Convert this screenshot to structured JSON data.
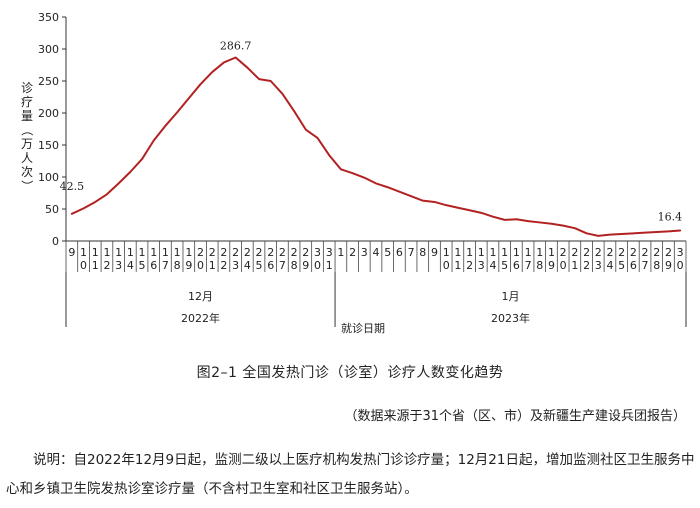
{
  "chart_data": {
    "type": "line",
    "ylabel": "诊疗量（万人次）",
    "xlabel": "就诊日期",
    "ylim": [
      0,
      350
    ],
    "yticks": [
      0,
      50,
      100,
      150,
      200,
      250,
      300,
      350
    ],
    "x": [
      "2022-12-09",
      "2022-12-10",
      "2022-12-11",
      "2022-12-12",
      "2022-12-13",
      "2022-12-14",
      "2022-12-15",
      "2022-12-16",
      "2022-12-17",
      "2022-12-18",
      "2022-12-19",
      "2022-12-20",
      "2022-12-21",
      "2022-12-22",
      "2022-12-23",
      "2022-12-24",
      "2022-12-25",
      "2022-12-26",
      "2022-12-27",
      "2022-12-28",
      "2022-12-29",
      "2022-12-30",
      "2022-12-31",
      "2023-01-01",
      "2023-01-02",
      "2023-01-03",
      "2023-01-04",
      "2023-01-05",
      "2023-01-06",
      "2023-01-07",
      "2023-01-08",
      "2023-01-09",
      "2023-01-10",
      "2023-01-11",
      "2023-01-12",
      "2023-01-13",
      "2023-01-14",
      "2023-01-15",
      "2023-01-16",
      "2023-01-17",
      "2023-01-18",
      "2023-01-19",
      "2023-01-20",
      "2023-01-21",
      "2023-01-22",
      "2023-01-23",
      "2023-01-24",
      "2023-01-25",
      "2023-01-26",
      "2023-01-27",
      "2023-01-28",
      "2023-01-29",
      "2023-01-30"
    ],
    "tick_labels": [
      "9",
      "10",
      "11",
      "12",
      "13",
      "14",
      "15",
      "16",
      "17",
      "18",
      "19",
      "20",
      "21",
      "22",
      "23",
      "24",
      "25",
      "26",
      "27",
      "28",
      "29",
      "30",
      "31",
      "1",
      "2",
      "3",
      "4",
      "5",
      "6",
      "7",
      "8",
      "9",
      "10",
      "11",
      "12",
      "13",
      "14",
      "15",
      "16",
      "17",
      "18",
      "19",
      "20",
      "21",
      "22",
      "23",
      "24",
      "25",
      "26",
      "27",
      "28",
      "29",
      "30"
    ],
    "series": [
      {
        "color": "#b22222",
        "values": [
          42.5,
          51,
          61,
          73,
          90,
          108,
          128,
          157,
          180,
          201,
          223,
          245,
          264,
          279,
          286.7,
          271,
          253,
          250,
          230,
          203,
          174,
          161,
          134,
          112,
          106,
          99,
          90,
          84,
          77,
          70,
          63,
          61,
          56,
          52,
          48,
          44,
          38,
          33,
          34,
          31,
          29,
          27,
          24,
          20,
          12,
          8,
          10,
          11,
          12,
          13,
          14,
          15,
          16.4
        ]
      }
    ],
    "annotations": [
      {
        "text": "42.5",
        "x": "2022-12-09",
        "y": 42.5
      },
      {
        "text": "286.7",
        "x": "2022-12-23",
        "y": 286.7
      },
      {
        "text": "16.4",
        "x": "2023-01-30",
        "y": 16.4
      }
    ],
    "month_labels": [
      {
        "text": "12月",
        "month": "2022-12"
      },
      {
        "text": "1月",
        "month": "2023-01"
      }
    ],
    "year_labels": [
      {
        "text": "2022年",
        "month": "2022-12"
      },
      {
        "text": "2023年",
        "month": "2023-01"
      }
    ]
  },
  "caption": "图2–1  全国发热门诊（诊室）诊疗人数变化趋势",
  "source_note": "（数据来源于31个省（区、市）及新疆生产建设兵团报告）",
  "explanation": "说明：自2022年12月9日起，监测二级以上医疗机构发热门诊诊疗量；12月21日起，增加监测社区卫生服务中心和乡镇卫生院发热诊室诊疗量（不含村卫生室和社区卫生服务站）。"
}
